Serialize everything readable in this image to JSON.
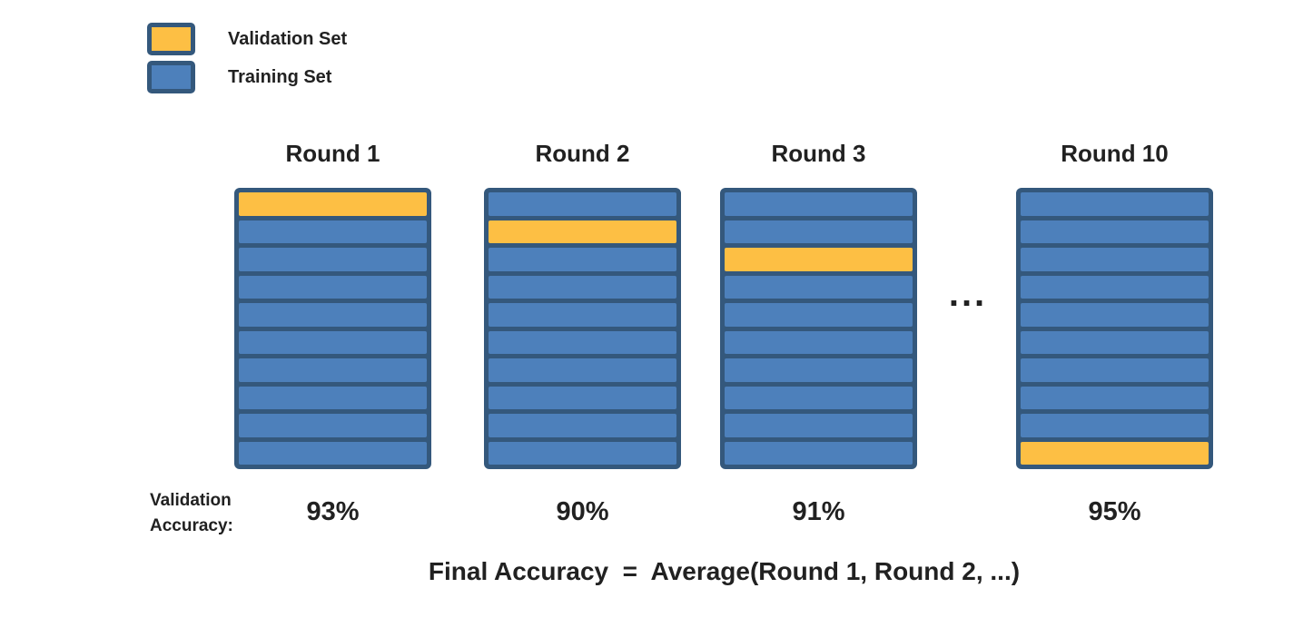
{
  "colors": {
    "validation": "#FDBF44",
    "training": "#4D80BB",
    "border": "#34587C",
    "text": "#212121"
  },
  "legend": {
    "items": [
      {
        "label": "Validation Set",
        "color_key": "validation"
      },
      {
        "label": "Training Set",
        "color_key": "training"
      }
    ]
  },
  "rounds": [
    {
      "title": "Round 1",
      "num_folds": 10,
      "validation_fold_index": 0,
      "accuracy": "93%"
    },
    {
      "title": "Round 2",
      "num_folds": 10,
      "validation_fold_index": 1,
      "accuracy": "90%"
    },
    {
      "title": "Round 3",
      "num_folds": 10,
      "validation_fold_index": 2,
      "accuracy": "91%"
    },
    {
      "title": "Round 10",
      "num_folds": 10,
      "validation_fold_index": 9,
      "accuracy": "95%"
    }
  ],
  "ellipsis": "...",
  "accuracy_caption": {
    "line1": "Validation",
    "line2": "Accuracy:"
  },
  "formula": "Final Accuracy  =  Average(Round 1, Round 2, ...)"
}
